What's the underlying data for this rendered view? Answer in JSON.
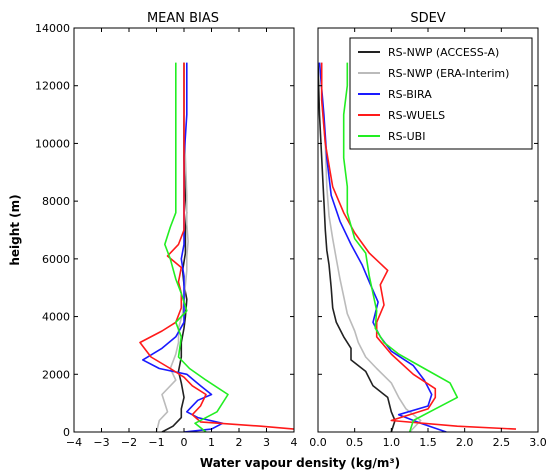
{
  "figure": {
    "xlabel": "Water vapour density (kg/m³)",
    "ylabel": "height (m)"
  },
  "colors": {
    "RS-NWP (ACCESS-A)": "#222222",
    "RS-NWP (ERA-Interim)": "#bbbbbb",
    "RS-BIRA": "#1a1aff",
    "RS-WUELS": "#ff1a1a",
    "RS-UBI": "#22ee22"
  },
  "chart_data": [
    {
      "type": "line",
      "title": "MEAN BIAS",
      "xlim": [
        -4,
        4
      ],
      "ylim": [
        0,
        14000
      ],
      "xticks": [
        "−4",
        "−3",
        "−2",
        "−1",
        "0",
        "1",
        "2",
        "3",
        "4"
      ],
      "yticks": [
        "0",
        "2000",
        "4000",
        "6000",
        "8000",
        "10000",
        "12000",
        "14000"
      ],
      "series": [
        {
          "name": "RS-NWP (ACCESS-A)",
          "points": [
            [
              -0.8,
              0
            ],
            [
              -0.4,
              200
            ],
            [
              -0.1,
              500
            ],
            [
              -0.1,
              800
            ],
            [
              0.0,
              1200
            ],
            [
              -0.1,
              1700
            ],
            [
              -0.2,
              2100
            ],
            [
              -0.1,
              2600
            ],
            [
              -0.1,
              3100
            ],
            [
              0.0,
              3600
            ],
            [
              0.05,
              4000
            ],
            [
              0.1,
              4600
            ],
            [
              0.0,
              5100
            ],
            [
              -0.05,
              5600
            ],
            [
              0.05,
              6200
            ],
            [
              0.05,
              7000
            ],
            [
              0.1,
              7600
            ],
            [
              0.05,
              8200
            ],
            [
              0.0,
              9500
            ],
            [
              0.0,
              11000
            ],
            [
              0.0,
              12800
            ]
          ]
        },
        {
          "name": "RS-NWP (ERA-Interim)",
          "points": [
            [
              -1.0,
              0
            ],
            [
              -0.9,
              400
            ],
            [
              -0.6,
              700
            ],
            [
              -0.8,
              1300
            ],
            [
              -0.3,
              1800
            ],
            [
              -0.5,
              2200
            ],
            [
              -0.3,
              2700
            ],
            [
              -0.2,
              3100
            ],
            [
              -0.2,
              3600
            ],
            [
              -0.05,
              4100
            ],
            [
              0.0,
              4600
            ],
            [
              0.05,
              5100
            ],
            [
              0.1,
              5600
            ],
            [
              0.1,
              6100
            ],
            [
              0.15,
              6600
            ],
            [
              0.1,
              7200
            ],
            [
              0.1,
              7600
            ],
            [
              0.1,
              8200
            ],
            [
              0.05,
              9500
            ],
            [
              0.0,
              11000
            ],
            [
              0.0,
              12800
            ]
          ]
        },
        {
          "name": "RS-BIRA",
          "points": [
            [
              0.0,
              0
            ],
            [
              1.0,
              100
            ],
            [
              1.4,
              300
            ],
            [
              0.5,
              500
            ],
            [
              0.1,
              700
            ],
            [
              0.5,
              1100
            ],
            [
              1.0,
              1300
            ],
            [
              0.6,
              1600
            ],
            [
              0.1,
              2000
            ],
            [
              -0.9,
              2200
            ],
            [
              -1.5,
              2500
            ],
            [
              -0.8,
              2900
            ],
            [
              -0.3,
              3300
            ],
            [
              0.0,
              3800
            ],
            [
              0.0,
              4300
            ],
            [
              0.0,
              4800
            ],
            [
              0.0,
              5400
            ],
            [
              -0.1,
              6000
            ],
            [
              0.0,
              6500
            ],
            [
              0.0,
              7500
            ],
            [
              0.0,
              8200
            ],
            [
              0.0,
              9500
            ],
            [
              0.1,
              11000
            ],
            [
              0.1,
              12800
            ]
          ]
        },
        {
          "name": "RS-WUELS",
          "points": [
            [
              4.0,
              100
            ],
            [
              2.8,
              200
            ],
            [
              0.6,
              350
            ],
            [
              0.3,
              600
            ],
            [
              0.6,
              900
            ],
            [
              0.8,
              1300
            ],
            [
              0.3,
              1600
            ],
            [
              0.0,
              1900
            ],
            [
              -0.5,
              2200
            ],
            [
              -1.2,
              2600
            ],
            [
              -1.6,
              3100
            ],
            [
              -0.8,
              3500
            ],
            [
              -0.3,
              3800
            ],
            [
              -0.1,
              4300
            ],
            [
              -0.1,
              4800
            ],
            [
              -0.2,
              5200
            ],
            [
              -0.1,
              5700
            ],
            [
              -0.6,
              6100
            ],
            [
              -0.2,
              6500
            ],
            [
              0.0,
              7000
            ],
            [
              0.0,
              7600
            ],
            [
              0.0,
              8200
            ],
            [
              0.0,
              9500
            ],
            [
              0.0,
              11000
            ],
            [
              0.0,
              12800
            ]
          ]
        },
        {
          "name": "RS-UBI",
          "points": [
            [
              0.8,
              0
            ],
            [
              0.4,
              300
            ],
            [
              1.2,
              700
            ],
            [
              1.6,
              1300
            ],
            [
              0.8,
              1800
            ],
            [
              0.2,
              2200
            ],
            [
              -0.2,
              2600
            ],
            [
              -0.1,
              3300
            ],
            [
              -0.3,
              3800
            ],
            [
              0.1,
              4200
            ],
            [
              -0.1,
              4800
            ],
            [
              -0.3,
              5300
            ],
            [
              -0.5,
              6000
            ],
            [
              -0.7,
              6500
            ],
            [
              -0.5,
              7100
            ],
            [
              -0.3,
              7600
            ],
            [
              -0.3,
              8200
            ],
            [
              -0.3,
              9500
            ],
            [
              -0.3,
              11000
            ],
            [
              -0.3,
              12800
            ]
          ]
        }
      ]
    },
    {
      "type": "line",
      "title": "SDEV",
      "xlim": [
        0,
        3.0
      ],
      "ylim": [
        0,
        14000
      ],
      "xticks": [
        "0.0",
        "0.5",
        "1.0",
        "1.5",
        "2.0",
        "2.5",
        "3.0"
      ],
      "legend": {
        "position": "top-right",
        "entries": [
          "RS-NWP (ACCESS-A)",
          "RS-NWP (ERA-Interim)",
          "RS-BIRA",
          "RS-WUELS",
          "RS-UBI"
        ]
      },
      "series": [
        {
          "name": "RS-NWP (ACCESS-A)",
          "points": [
            [
              1.0,
              0
            ],
            [
              1.05,
              400
            ],
            [
              1.0,
              700
            ],
            [
              0.95,
              1200
            ],
            [
              0.75,
              1600
            ],
            [
              0.65,
              2100
            ],
            [
              0.45,
              2500
            ],
            [
              0.45,
              2900
            ],
            [
              0.35,
              3300
            ],
            [
              0.25,
              3800
            ],
            [
              0.2,
              4300
            ],
            [
              0.18,
              5000
            ],
            [
              0.15,
              5800
            ],
            [
              0.12,
              6300
            ],
            [
              0.1,
              7000
            ],
            [
              0.08,
              8000
            ],
            [
              0.05,
              9500
            ],
            [
              0.02,
              11000
            ],
            [
              0.0,
              12800
            ]
          ]
        },
        {
          "name": "RS-NWP (ERA-Interim)",
          "points": [
            [
              1.25,
              0
            ],
            [
              1.4,
              400
            ],
            [
              1.2,
              800
            ],
            [
              1.1,
              1200
            ],
            [
              1.0,
              1700
            ],
            [
              0.8,
              2200
            ],
            [
              0.65,
              2600
            ],
            [
              0.55,
              3100
            ],
            [
              0.5,
              3500
            ],
            [
              0.4,
              4100
            ],
            [
              0.35,
              4700
            ],
            [
              0.3,
              5300
            ],
            [
              0.25,
              6000
            ],
            [
              0.2,
              6700
            ],
            [
              0.15,
              7500
            ],
            [
              0.12,
              8500
            ],
            [
              0.1,
              10000
            ],
            [
              0.05,
              11500
            ],
            [
              0.05,
              12800
            ]
          ]
        },
        {
          "name": "RS-BIRA",
          "points": [
            [
              1.75,
              0
            ],
            [
              1.4,
              300
            ],
            [
              1.1,
              600
            ],
            [
              1.5,
              900
            ],
            [
              1.55,
              1300
            ],
            [
              1.45,
              1800
            ],
            [
              1.3,
              2300
            ],
            [
              1.0,
              2800
            ],
            [
              0.85,
              3300
            ],
            [
              0.75,
              3800
            ],
            [
              0.82,
              4500
            ],
            [
              0.7,
              5200
            ],
            [
              0.6,
              5800
            ],
            [
              0.45,
              6500
            ],
            [
              0.3,
              7300
            ],
            [
              0.18,
              8200
            ],
            [
              0.12,
              9500
            ],
            [
              0.08,
              11000
            ],
            [
              0.02,
              12800
            ]
          ]
        },
        {
          "name": "RS-WUELS",
          "points": [
            [
              2.7,
              100
            ],
            [
              1.9,
              200
            ],
            [
              1.0,
              400
            ],
            [
              1.5,
              800
            ],
            [
              1.6,
              1200
            ],
            [
              1.6,
              1500
            ],
            [
              1.3,
              2000
            ],
            [
              1.0,
              2700
            ],
            [
              0.8,
              3300
            ],
            [
              0.8,
              3800
            ],
            [
              0.9,
              4400
            ],
            [
              0.85,
              5100
            ],
            [
              0.95,
              5600
            ],
            [
              0.7,
              6200
            ],
            [
              0.5,
              6900
            ],
            [
              0.35,
              7600
            ],
            [
              0.2,
              8500
            ],
            [
              0.1,
              10000
            ],
            [
              0.05,
              11500
            ],
            [
              0.05,
              12800
            ]
          ]
        },
        {
          "name": "RS-UBI",
          "points": [
            [
              1.25,
              0
            ],
            [
              1.3,
              400
            ],
            [
              1.6,
              800
            ],
            [
              1.9,
              1200
            ],
            [
              1.8,
              1700
            ],
            [
              1.45,
              2200
            ],
            [
              1.1,
              2700
            ],
            [
              0.9,
              3100
            ],
            [
              0.78,
              3600
            ],
            [
              0.8,
              4200
            ],
            [
              0.75,
              4800
            ],
            [
              0.7,
              5400
            ],
            [
              0.65,
              6200
            ],
            [
              0.5,
              6700
            ],
            [
              0.4,
              7600
            ],
            [
              0.4,
              8500
            ],
            [
              0.35,
              9500
            ],
            [
              0.35,
              11000
            ],
            [
              0.4,
              12000
            ],
            [
              0.4,
              12800
            ]
          ]
        }
      ]
    }
  ]
}
